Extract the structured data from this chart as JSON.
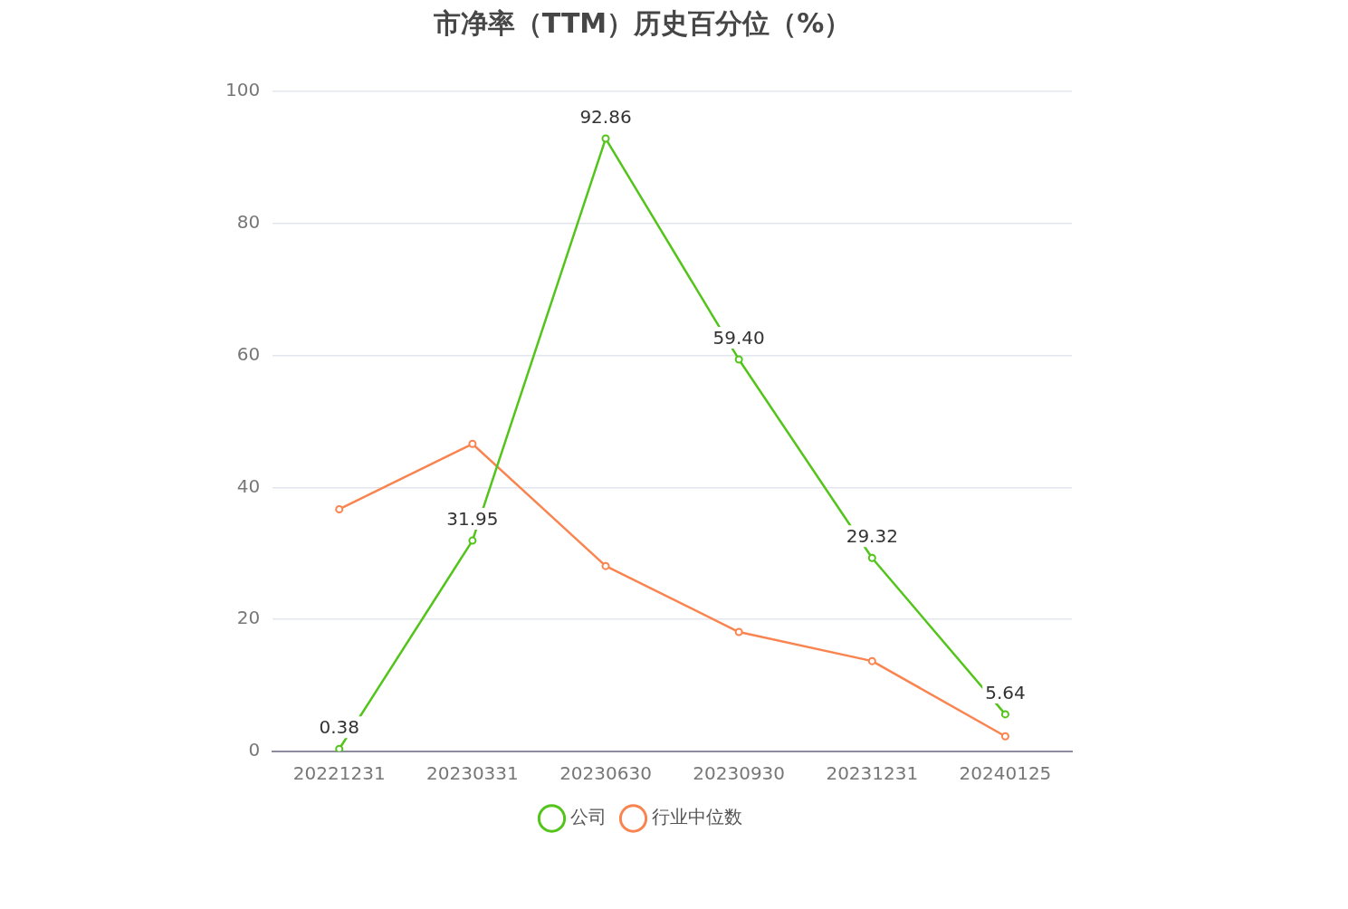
{
  "chart_data": {
    "type": "line",
    "title": "市净率（TTM）历史百分位（%）",
    "categories": [
      "20221231",
      "20230331",
      "20230630",
      "20230930",
      "20231231",
      "20240125"
    ],
    "series": [
      {
        "name": "公司",
        "color": "#52c41a",
        "values": [
          0.38,
          31.95,
          92.86,
          59.4,
          29.32,
          5.64
        ],
        "value_labels": [
          "0.38",
          "31.95",
          "92.86",
          "59.40",
          "29.32",
          "5.64"
        ]
      },
      {
        "name": "行业中位数",
        "color": "#fa8450",
        "values": [
          36.7,
          46.6,
          28.1,
          18.1,
          13.7,
          2.3
        ]
      }
    ],
    "ylim": [
      0,
      100
    ],
    "yticks": [
      0,
      20,
      40,
      60,
      80,
      100
    ],
    "grid": "y",
    "legend": "bottom",
    "marker": "circle",
    "line_style": "solid"
  }
}
